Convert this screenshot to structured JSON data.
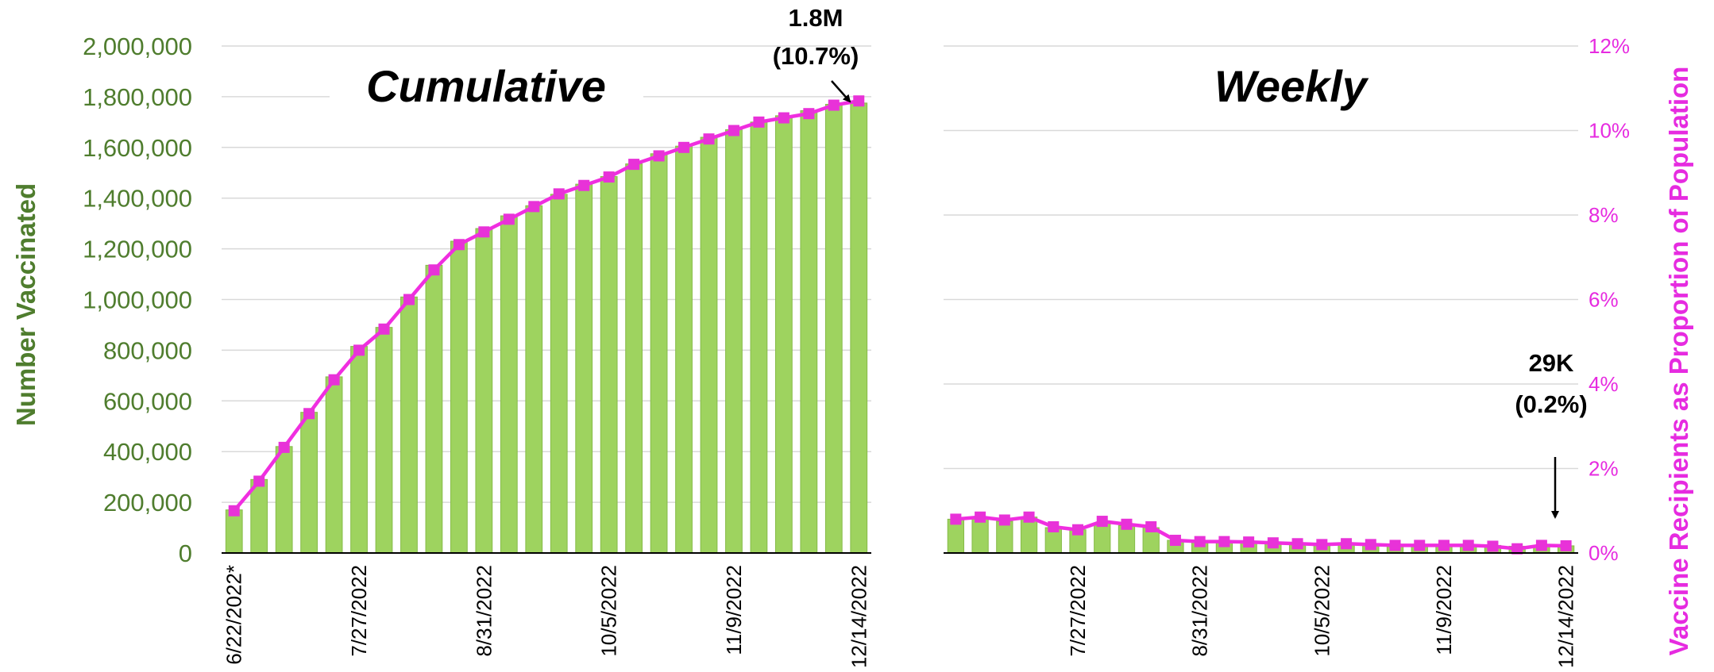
{
  "colors": {
    "bar": "#9ed35f",
    "bar_edge": "#86bb48",
    "line": "#f02ee0",
    "marker": "#e832d8",
    "left_axis_text": "#4f7d2e",
    "right_axis_text": "#e62be0",
    "grid": "#d9d9d9",
    "text": "#000000"
  },
  "chart_data": [
    {
      "type": "bar",
      "panel": "left",
      "title": "Cumulative",
      "ylabel": "Number Vaccinated",
      "ylim": [
        0,
        2000000
      ],
      "yticks": [
        "0",
        "200,000",
        "400,000",
        "600,000",
        "800,000",
        "1,000,000",
        "1,200,000",
        "1,400,000",
        "1,600,000",
        "1,800,000",
        "2,000,000"
      ],
      "xtick_labels": [
        "6/22/2022*",
        "7/27/2022",
        "8/31/2022",
        "10/5/2022",
        "11/9/2022",
        "12/14/2022"
      ],
      "xtick_indices": [
        0,
        5,
        10,
        15,
        20,
        25
      ],
      "grid": true,
      "series": [
        {
          "type": "bar",
          "values": [
            170000,
            290000,
            420000,
            555000,
            695000,
            815000,
            890000,
            1010000,
            1135000,
            1230000,
            1280000,
            1330000,
            1370000,
            1415000,
            1455000,
            1485000,
            1535000,
            1575000,
            1605000,
            1640000,
            1670000,
            1700000,
            1725000,
            1745000,
            1770000,
            1775000
          ]
        },
        {
          "type": "line",
          "values": [
            1.0,
            1.7,
            2.5,
            3.3,
            4.1,
            4.8,
            5.3,
            6.0,
            6.7,
            7.3,
            7.6,
            7.9,
            8.2,
            8.5,
            8.7,
            8.9,
            9.2,
            9.4,
            9.6,
            9.8,
            10.0,
            10.2,
            10.3,
            10.4,
            10.6,
            10.7
          ]
        }
      ],
      "annotation": {
        "line1": "1.8M",
        "line2": "(10.7%)"
      }
    },
    {
      "type": "bar",
      "panel": "right",
      "title": "Weekly",
      "ylabel": "Vaccine Recipients as Proportion of Population",
      "ylim": [
        0,
        12
      ],
      "yticks": [
        "0%",
        "2%",
        "4%",
        "6%",
        "8%",
        "10%",
        "12%"
      ],
      "xtick_labels": [
        "7/27/2022",
        "8/31/2022",
        "10/5/2022",
        "11/9/2022",
        "12/14/2022"
      ],
      "xtick_indices": [
        5,
        10,
        15,
        20,
        25
      ],
      "grid": true,
      "series": [
        {
          "type": "bar",
          "values": [
            0.8,
            0.8,
            0.75,
            0.85,
            0.6,
            0.55,
            0.7,
            0.65,
            0.6,
            0.3,
            0.28,
            0.27,
            0.26,
            0.25,
            0.24,
            0.22,
            0.24,
            0.22,
            0.2,
            0.2,
            0.2,
            0.2,
            0.18,
            0.16,
            0.18,
            0.17
          ]
        },
        {
          "type": "line",
          "values": [
            0.8,
            0.85,
            0.78,
            0.85,
            0.62,
            0.55,
            0.75,
            0.68,
            0.62,
            0.3,
            0.27,
            0.27,
            0.26,
            0.24,
            0.22,
            0.2,
            0.22,
            0.2,
            0.18,
            0.18,
            0.18,
            0.18,
            0.16,
            0.1,
            0.18,
            0.17
          ]
        }
      ],
      "annotation": {
        "line1": "29K",
        "line2": "(0.2%)"
      }
    }
  ]
}
